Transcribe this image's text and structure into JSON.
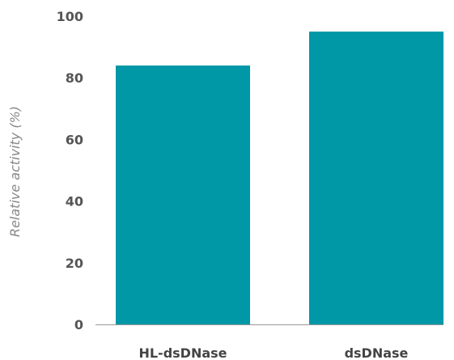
{
  "chart_data": {
    "type": "bar",
    "categories": [
      "HL-dsDNase",
      "dsDNase"
    ],
    "values": [
      84,
      95
    ],
    "ylabel": "Relative activity (%)",
    "xlabel": "",
    "ylim": [
      0,
      100
    ],
    "yticks": [
      0,
      20,
      40,
      60,
      80,
      100
    ],
    "grid": false,
    "legend": "none",
    "bar_color": "#0097a7",
    "axis_color": "#999999"
  }
}
